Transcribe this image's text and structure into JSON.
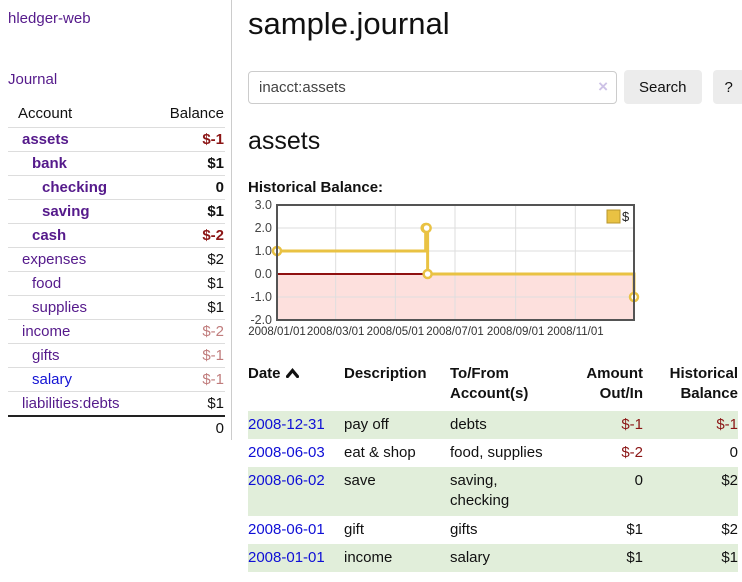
{
  "app": {
    "title": "hledger-web"
  },
  "sidebar": {
    "journal_link": "Journal",
    "accounts_table": {
      "headers": {
        "account": "Account",
        "balance": "Balance"
      },
      "rows": [
        {
          "name": "assets",
          "depth": 1,
          "bold": true,
          "balance": "$-1",
          "balance_style": "neg-strong"
        },
        {
          "name": "bank",
          "depth": 2,
          "bold": true,
          "balance": "$1",
          "balance_style": "pos-strong"
        },
        {
          "name": "checking",
          "depth": 3,
          "bold": true,
          "balance": "0",
          "balance_style": "pos-strong"
        },
        {
          "name": "saving",
          "depth": 3,
          "bold": true,
          "balance": "$1",
          "balance_style": "pos-strong"
        },
        {
          "name": "cash",
          "depth": 2,
          "bold": true,
          "balance": "$-2",
          "balance_style": "neg-strong"
        },
        {
          "name": "expenses",
          "depth": 1,
          "bold": false,
          "balance": "$2",
          "balance_style": "pos"
        },
        {
          "name": "food",
          "depth": 2,
          "bold": false,
          "balance": "$1",
          "balance_style": "pos"
        },
        {
          "name": "supplies",
          "depth": 2,
          "bold": false,
          "balance": "$1",
          "balance_style": "pos"
        },
        {
          "name": "income",
          "depth": 1,
          "bold": false,
          "balance": "$-2",
          "balance_style": "neg-muted"
        },
        {
          "name": "gifts",
          "depth": 2,
          "bold": false,
          "balance": "$-1",
          "balance_style": "neg-muted"
        },
        {
          "name": "salary",
          "depth": 2,
          "bold": false,
          "balance": "$-1",
          "balance_style": "neg-muted",
          "link_color": "blue"
        },
        {
          "name": "liabilities:debts",
          "depth": 1,
          "bold": false,
          "balance": "$1",
          "balance_style": "pos"
        }
      ],
      "total": "0"
    }
  },
  "main": {
    "title": "sample.journal",
    "search": {
      "value": "inacct:assets",
      "clear_icon": "×",
      "button_label": "Search",
      "help_label": "?"
    },
    "account_heading": "assets",
    "chart_title": "Historical Balance:"
  },
  "chart_data": {
    "type": "line",
    "title": "Historical Balance:",
    "legend": {
      "position": "top-right",
      "label": "$"
    },
    "x_range": [
      "2008-01-01",
      "2008-12-31"
    ],
    "ylim": [
      -2,
      3
    ],
    "x_ticks": [
      "2008/01/01",
      "2008/03/01",
      "2008/05/01",
      "2008/07/01",
      "2008/09/01",
      "2008/11/01"
    ],
    "y_ticks": [
      3.0,
      2.0,
      1.0,
      0.0,
      -1.0,
      -2.0
    ],
    "series": [
      {
        "name": "$",
        "style": "step",
        "color": "#e9c243",
        "marker_fill": "#ffffff",
        "points": [
          {
            "date": "2008-01-01",
            "value": 1
          },
          {
            "date": "2008-06-01",
            "value": 2
          },
          {
            "date": "2008-06-02",
            "value": 2
          },
          {
            "date": "2008-06-03",
            "value": 0
          },
          {
            "date": "2008-12-31",
            "value": -1
          }
        ]
      }
    ],
    "zero_line_color": "#8f1010",
    "negative_fill": "#fde0dd",
    "grid_color": "#dedede",
    "border_color": "#545454",
    "tick_label_color": "#333333"
  },
  "register_table": {
    "headers": {
      "date": "Date",
      "description": "Description",
      "accounts": "To/From Account(s)",
      "amount": "Amount Out/In",
      "balance": "Historical Balance"
    },
    "rows": [
      {
        "date": "2008-12-31",
        "description": "pay off",
        "accounts": "debts",
        "amount": "$-1",
        "amount_neg": true,
        "balance": "$-1",
        "balance_neg": true
      },
      {
        "date": "2008-06-03",
        "description": "eat & shop",
        "accounts": "food, supplies",
        "amount": "$-2",
        "amount_neg": true,
        "balance": "0",
        "balance_neg": false
      },
      {
        "date": "2008-06-02",
        "description": "save",
        "accounts": "saving, checking",
        "amount": "0",
        "amount_neg": false,
        "balance": "$2",
        "balance_neg": false
      },
      {
        "date": "2008-06-01",
        "description": "gift",
        "accounts": "gifts",
        "amount": "$1",
        "amount_neg": false,
        "balance": "$2",
        "balance_neg": false
      },
      {
        "date": "2008-01-01",
        "description": "income",
        "accounts": "salary",
        "amount": "$1",
        "amount_neg": false,
        "balance": "$1",
        "balance_neg": false
      }
    ]
  }
}
